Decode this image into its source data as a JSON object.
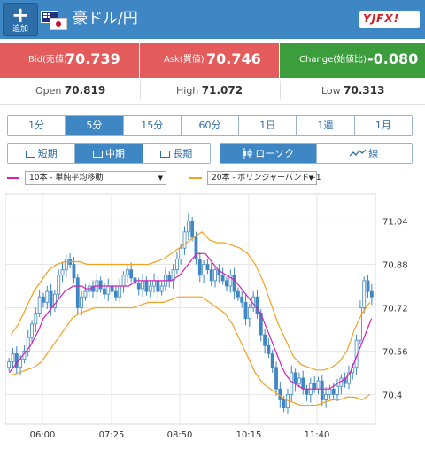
{
  "header": {
    "add_label": "追加",
    "pair": "豪ドル/円",
    "brand": "YJFX!"
  },
  "quote": {
    "bid_label": "Bid(売値)",
    "bid_value": "70.739",
    "ask_label": "Ask(買値)",
    "ask_value": "70.746",
    "change_label": "Change(始値比)",
    "change_value": "-0.080"
  },
  "ohlc": {
    "open_label": "Open",
    "open_value": "70.819",
    "high_label": "High",
    "high_value": "71.072",
    "low_label": "Low",
    "low_value": "70.313"
  },
  "timeframes": [
    {
      "label": "1分",
      "active": false
    },
    {
      "label": "5分",
      "active": true
    },
    {
      "label": "15分",
      "active": false
    },
    {
      "label": "60分",
      "active": false
    },
    {
      "label": "1日",
      "active": false
    },
    {
      "label": "1週",
      "active": false
    },
    {
      "label": "1月",
      "active": false
    }
  ],
  "periods": [
    {
      "label": "短期",
      "active": false
    },
    {
      "label": "中期",
      "active": true
    },
    {
      "label": "長期",
      "active": false
    }
  ],
  "chart_types": [
    {
      "label": "ローソク",
      "active": true
    },
    {
      "label": "線",
      "active": false
    }
  ],
  "indicators": [
    {
      "label": "10本 - 単純平均移動",
      "color": "#d61fb4"
    },
    {
      "label": "20本 - ボリンジャーバンド+1",
      "color": "#f5a020"
    }
  ],
  "colors": {
    "header": "#3f86c4",
    "bid_ask": "#e35b5b",
    "change": "#3b9d3b",
    "candle": "#3f86c4",
    "grid": "#e6e6e6"
  },
  "chart_data": {
    "type": "candlestick",
    "x_ticks": [
      "06:00",
      "07:25",
      "08:50",
      "10:15",
      "11:40"
    ],
    "y_ticks": [
      71.04,
      70.88,
      70.72,
      70.56,
      70.4
    ],
    "ylim": [
      70.29,
      71.14
    ],
    "grid": true,
    "closes": [
      70.52,
      70.55,
      70.5,
      70.53,
      70.56,
      70.61,
      70.66,
      70.7,
      70.76,
      70.74,
      70.78,
      70.72,
      70.77,
      70.84,
      70.86,
      70.9,
      70.88,
      70.83,
      70.72,
      70.76,
      70.78,
      70.8,
      70.78,
      70.82,
      70.79,
      70.77,
      70.8,
      70.78,
      70.76,
      70.8,
      70.84,
      70.86,
      70.83,
      70.81,
      70.79,
      70.82,
      70.78,
      70.8,
      70.82,
      70.78,
      70.8,
      70.84,
      70.82,
      70.86,
      70.9,
      70.94,
      71.0,
      71.04,
      70.98,
      70.9,
      70.84,
      70.88,
      70.86,
      70.82,
      70.86,
      70.84,
      70.82,
      70.8,
      70.84,
      70.78,
      70.76,
      70.74,
      70.68,
      70.72,
      70.76,
      70.7,
      70.62,
      70.58,
      70.55,
      70.5,
      70.42,
      70.38,
      70.35,
      70.4,
      70.48,
      70.44,
      70.46,
      70.42,
      70.4,
      70.44,
      70.42,
      70.45,
      70.38,
      70.4,
      70.42,
      70.4,
      70.43,
      70.46,
      70.44,
      70.48,
      70.5,
      70.6,
      70.72,
      70.82,
      70.78,
      70.76
    ],
    "ma": [
      70.48,
      70.5,
      70.52,
      70.54,
      70.56,
      70.58,
      70.61,
      70.64,
      70.68,
      70.7,
      70.72,
      70.74,
      70.76,
      70.78,
      70.79,
      70.8,
      70.8,
      70.8,
      70.79,
      70.79,
      70.8,
      70.8,
      70.8,
      70.8,
      70.8,
      70.8,
      70.8,
      70.8,
      70.8,
      70.81,
      70.82,
      70.82,
      70.82,
      70.82,
      70.82,
      70.82,
      70.82,
      70.82,
      70.82,
      70.83,
      70.84,
      70.86,
      70.88,
      70.9,
      70.92,
      70.92,
      70.92,
      70.9,
      70.88,
      70.86,
      70.85,
      70.84,
      70.83,
      70.82,
      70.8,
      70.78,
      70.76,
      70.74,
      70.72,
      70.7,
      70.66,
      70.62,
      70.58,
      70.54,
      70.5,
      70.47,
      70.45,
      70.44,
      70.43,
      70.42,
      70.42,
      70.42,
      70.42,
      70.42,
      70.42,
      70.42,
      70.43,
      70.44,
      70.45,
      70.46,
      70.48,
      70.52,
      70.56,
      70.6,
      70.64,
      70.68
    ],
    "bb_upper": [
      70.62,
      70.66,
      70.72,
      70.78,
      70.82,
      70.86,
      70.88,
      70.89,
      70.89,
      70.89,
      70.88,
      70.88,
      70.88,
      70.88,
      70.88,
      70.88,
      70.88,
      70.88,
      70.88,
      70.89,
      70.9,
      70.92,
      70.94,
      70.96,
      70.98,
      71.0,
      70.97,
      70.96,
      70.96,
      70.95,
      70.94,
      70.92,
      70.88,
      70.82,
      70.74,
      70.66,
      70.6,
      70.54,
      70.51,
      70.5,
      70.49,
      70.49,
      70.5,
      70.52,
      70.56,
      70.64,
      70.7,
      70.74
    ],
    "bb_lower": [
      70.47,
      70.48,
      70.49,
      70.5,
      70.52,
      70.56,
      70.6,
      70.64,
      70.68,
      70.7,
      70.71,
      70.72,
      70.72,
      70.72,
      70.72,
      70.72,
      70.72,
      70.73,
      70.74,
      70.74,
      70.74,
      70.75,
      70.76,
      70.76,
      70.76,
      70.76,
      70.74,
      70.72,
      70.7,
      70.66,
      70.6,
      70.54,
      70.48,
      70.44,
      70.42,
      70.4,
      70.38,
      70.37,
      70.36,
      70.36,
      70.36,
      70.37,
      70.38,
      70.38,
      70.39,
      70.39,
      70.38,
      70.4
    ]
  }
}
